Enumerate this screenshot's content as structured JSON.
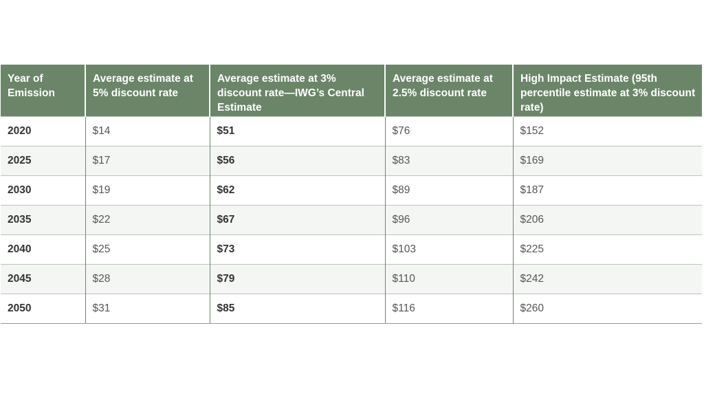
{
  "table": {
    "headers": [
      "Year of Emission",
      "Average estimate at 5% discount rate",
      "Average estimate at 3% discount rate—IWG’s Central Estimate",
      "Average estimate at 2.5% discount rate",
      "High Impact Estimate (95th percentile estimate at 3% discount rate)"
    ],
    "rows": [
      [
        "2020",
        "$14",
        "$51",
        "$76",
        "$152"
      ],
      [
        "2025",
        "$17",
        "$56",
        "$83",
        "$169"
      ],
      [
        "2030",
        "$19",
        "$62",
        "$89",
        "$187"
      ],
      [
        "2035",
        "$22",
        "$67",
        "$96",
        "$206"
      ],
      [
        "2040",
        "$25",
        "$73",
        "$103",
        "$225"
      ],
      [
        "2045",
        "$28",
        "$79",
        "$110",
        "$242"
      ],
      [
        "2050",
        "$31",
        "$85",
        "$116",
        "$260"
      ]
    ]
  },
  "colors": {
    "header_bg": "#6b8569",
    "header_text": "#ffffff",
    "alt_row_bg": "#f4f6f4"
  }
}
